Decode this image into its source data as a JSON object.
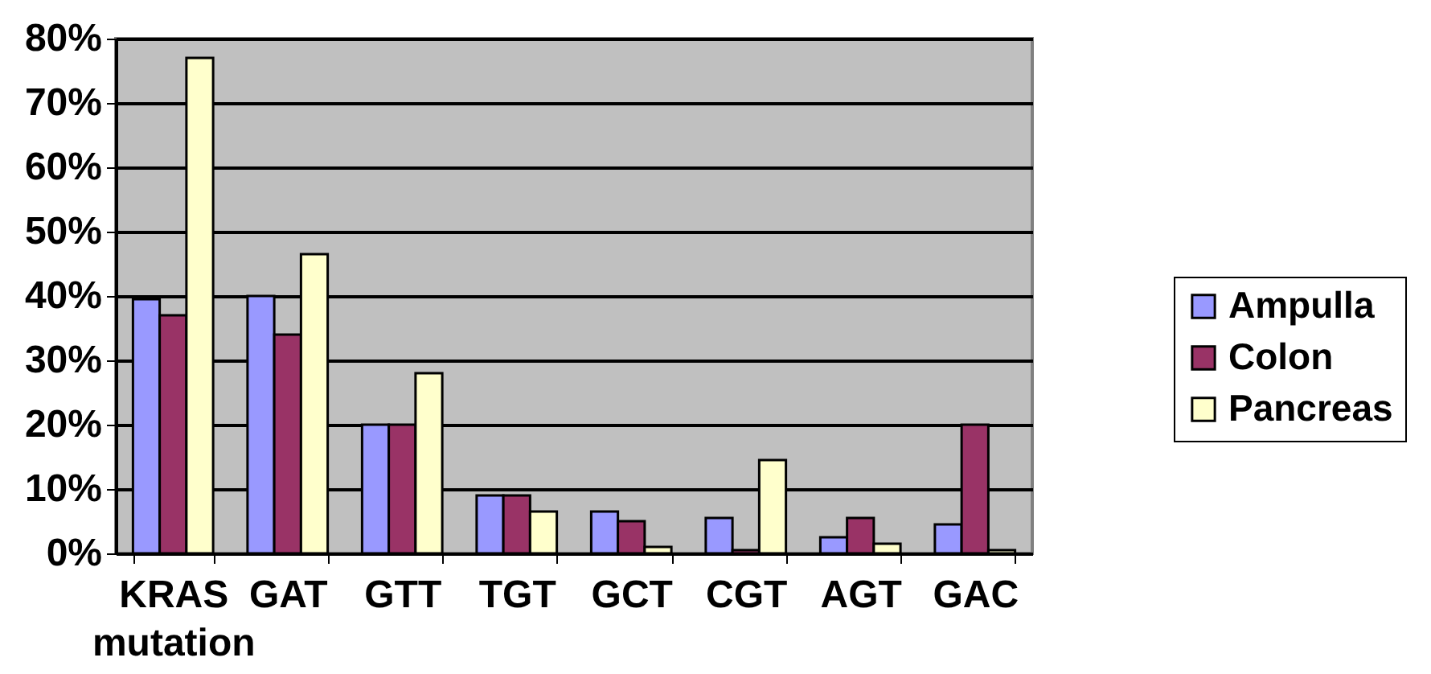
{
  "chart_data": {
    "type": "bar",
    "categories": [
      "KRAS mutation",
      "GAT",
      "GTT",
      "TGT",
      "GCT",
      "CGT",
      "AGT",
      "GAC"
    ],
    "series": [
      {
        "name": "Ampulla",
        "color": "#9999ff",
        "values": [
          39.5,
          40,
          20,
          9,
          6.5,
          5.5,
          2.5,
          4.5
        ]
      },
      {
        "name": "Colon",
        "color": "#993366",
        "values": [
          37,
          34,
          20,
          9,
          5,
          0.5,
          5.5,
          20
        ]
      },
      {
        "name": "Pancreas",
        "color": "#ffffcc",
        "values": [
          77,
          46.5,
          28,
          6.5,
          1,
          14.5,
          1.5,
          0.5
        ]
      }
    ],
    "ylim": [
      0,
      80
    ],
    "yticks": [
      {
        "value": 0,
        "label": "0%"
      },
      {
        "value": 10,
        "label": "10%"
      },
      {
        "value": 20,
        "label": "20%"
      },
      {
        "value": 30,
        "label": "30%"
      },
      {
        "value": 40,
        "label": "40%"
      },
      {
        "value": 50,
        "label": "50%"
      },
      {
        "value": 60,
        "label": "60%"
      },
      {
        "value": 70,
        "label": "70%"
      },
      {
        "value": 80,
        "label": "80%"
      }
    ],
    "grid": "y",
    "legend": "right"
  }
}
